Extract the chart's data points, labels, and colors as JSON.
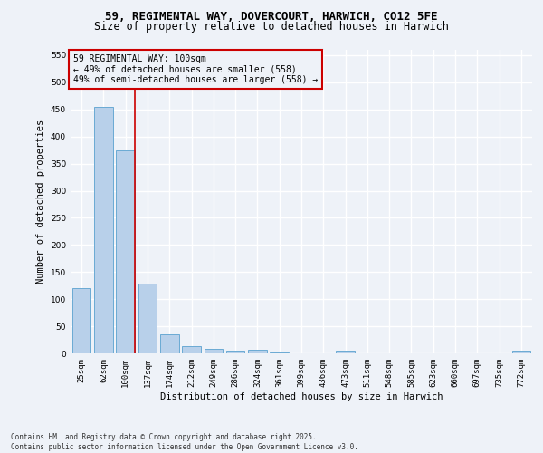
{
  "title": "59, REGIMENTAL WAY, DOVERCOURT, HARWICH, CO12 5FE",
  "subtitle": "Size of property relative to detached houses in Harwich",
  "xlabel": "Distribution of detached houses by size in Harwich",
  "ylabel": "Number of detached properties",
  "categories": [
    "25sqm",
    "62sqm",
    "100sqm",
    "137sqm",
    "174sqm",
    "212sqm",
    "249sqm",
    "286sqm",
    "324sqm",
    "361sqm",
    "399sqm",
    "436sqm",
    "473sqm",
    "511sqm",
    "548sqm",
    "585sqm",
    "623sqm",
    "660sqm",
    "697sqm",
    "735sqm",
    "772sqm"
  ],
  "values": [
    120,
    455,
    375,
    128,
    35,
    14,
    9,
    5,
    6,
    1,
    0,
    0,
    5,
    0,
    0,
    0,
    0,
    0,
    0,
    0,
    5
  ],
  "bar_color": "#b8d0ea",
  "bar_edge_color": "#6aaad4",
  "highlight_index": 2,
  "highlight_line_color": "#cc0000",
  "annotation_text": "59 REGIMENTAL WAY: 100sqm\n← 49% of detached houses are smaller (558)\n49% of semi-detached houses are larger (558) →",
  "annotation_box_color": "#cc0000",
  "ylim": [
    0,
    560
  ],
  "yticks": [
    0,
    50,
    100,
    150,
    200,
    250,
    300,
    350,
    400,
    450,
    500,
    550
  ],
  "background_color": "#eef2f8",
  "grid_color": "#ffffff",
  "footnote": "Contains HM Land Registry data © Crown copyright and database right 2025.\nContains public sector information licensed under the Open Government Licence v3.0.",
  "title_fontsize": 9,
  "subtitle_fontsize": 8.5,
  "axis_label_fontsize": 7.5,
  "tick_fontsize": 6.5,
  "annotation_fontsize": 7,
  "footnote_fontsize": 5.5
}
